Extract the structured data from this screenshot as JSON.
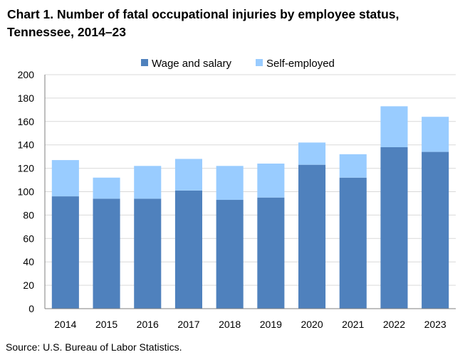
{
  "chart_data": {
    "type": "bar",
    "stacked": true,
    "title": "Chart 1. Number of fatal occupational injuries by employee status, Tennessee, 2014–23",
    "source": "Source: U.S. Bureau of Labor Statistics.",
    "categories": [
      "2014",
      "2015",
      "2016",
      "2017",
      "2018",
      "2019",
      "2020",
      "2021",
      "2022",
      "2023"
    ],
    "series": [
      {
        "name": "Wage and salary",
        "color": "#4f81bd",
        "values": [
          96,
          94,
          94,
          101,
          93,
          95,
          123,
          112,
          138,
          134
        ]
      },
      {
        "name": "Self-employed",
        "color": "#99ccff",
        "values": [
          31,
          18,
          28,
          27,
          29,
          29,
          19,
          20,
          35,
          30
        ]
      }
    ],
    "ylim": [
      0,
      200
    ],
    "yticks": [
      0,
      20,
      40,
      60,
      80,
      100,
      120,
      140,
      160,
      180,
      200
    ],
    "grid": true,
    "legend_position": "top-center"
  }
}
